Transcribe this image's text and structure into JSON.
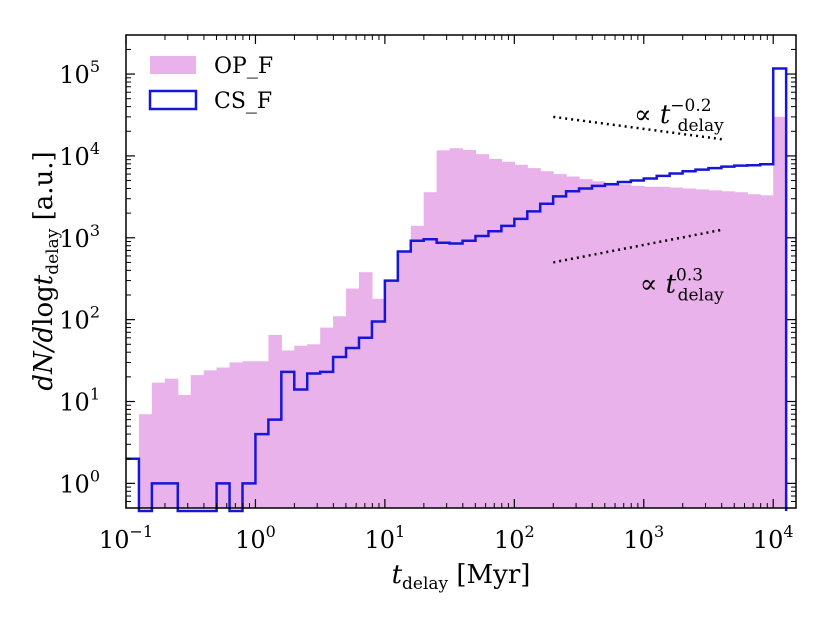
{
  "chart_data": {
    "type": "histogram",
    "xscale": "log",
    "yscale": "log",
    "xlim": [
      0.1,
      15000
    ],
    "ylim": [
      0.5,
      300000
    ],
    "xlabel": {
      "base": "t",
      "sub": "delay",
      "unit": " [Myr]"
    },
    "ylabel": {
      "pre": "dN/d",
      "log": "log",
      "t": "t",
      "sub": "delay",
      "unit": " [a.u.]"
    },
    "x_ticks": [
      {
        "value": 0.1,
        "base": "10",
        "exp": "−1"
      },
      {
        "value": 1,
        "base": "10",
        "exp": "0"
      },
      {
        "value": 10,
        "base": "10",
        "exp": "1"
      },
      {
        "value": 100,
        "base": "10",
        "exp": "2"
      },
      {
        "value": 1000,
        "base": "10",
        "exp": "3"
      },
      {
        "value": 10000,
        "base": "10",
        "exp": "4"
      }
    ],
    "y_ticks": [
      {
        "value": 1,
        "base": "10",
        "exp": "0"
      },
      {
        "value": 10,
        "base": "10",
        "exp": "1"
      },
      {
        "value": 100,
        "base": "10",
        "exp": "2"
      },
      {
        "value": 1000,
        "base": "10",
        "exp": "3"
      },
      {
        "value": 10000,
        "base": "10",
        "exp": "4"
      },
      {
        "value": 100000,
        "base": "10",
        "exp": "5"
      }
    ],
    "bin_log_start": -1.0,
    "bin_log_width": 0.1,
    "series": [
      {
        "name": "OP_F",
        "style": "filled",
        "color": "#e9b2ea",
        "values": [
          0,
          7,
          17,
          19,
          12,
          21,
          24,
          26,
          30,
          31,
          31,
          65,
          42,
          48,
          50,
          80,
          110,
          240,
          380,
          180,
          300,
          700,
          1400,
          3600,
          11700,
          12400,
          11800,
          10500,
          9200,
          8500,
          7800,
          7100,
          6500,
          6000,
          5600,
          5200,
          4900,
          4700,
          4500,
          4300,
          4200,
          4200,
          4100,
          4000,
          3900,
          3800,
          3700,
          3600,
          3400,
          3300,
          30000
        ]
      },
      {
        "name": "CS_F",
        "style": "step",
        "color": "#1616d8",
        "values": [
          2,
          0,
          1,
          1,
          0,
          0,
          0,
          1,
          0,
          1,
          4,
          6,
          23,
          14,
          22,
          23,
          35,
          45,
          60,
          95,
          300,
          680,
          920,
          960,
          870,
          850,
          920,
          1050,
          1200,
          1400,
          1700,
          2100,
          2600,
          3200,
          3700,
          4000,
          4300,
          4500,
          4800,
          5000,
          5300,
          5700,
          6100,
          6500,
          6800,
          7100,
          7400,
          7600,
          7700,
          7900,
          117000
        ]
      }
    ],
    "annotations": [
      {
        "prefix": "∝",
        "base": "t",
        "sub": "delay",
        "sup": "−0.2",
        "x1": 200,
        "y1": 30000,
        "x2": 4000,
        "y2": 16000
      },
      {
        "prefix": "∝",
        "base": "t",
        "sub": "delay",
        "sup": "0.3",
        "x1": 200,
        "y1": 500,
        "x2": 4000,
        "y2": 1250
      }
    ],
    "legend": {
      "placement": "top-left",
      "entries": [
        {
          "label": "OP_F",
          "style": "filled"
        },
        {
          "label": "CS_F",
          "style": "step"
        }
      ]
    }
  }
}
